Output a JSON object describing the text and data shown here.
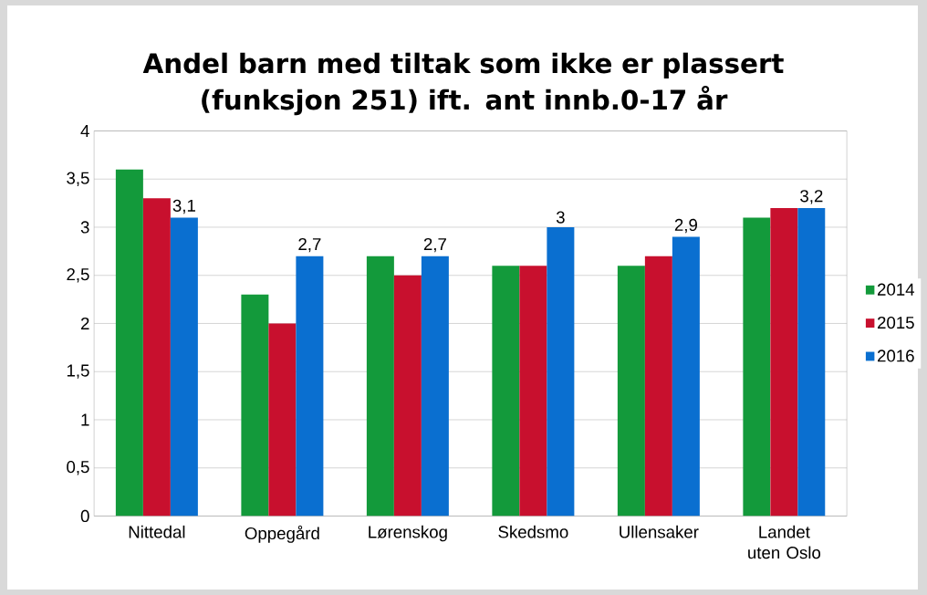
{
  "chart_data": {
    "type": "bar",
    "title": "Andel barn med tiltak som ikke er plassert (funksjon 251) ift. ant innb.0-17 år",
    "categories": [
      "Nittedal",
      "Oppegård",
      "Lørenskog",
      "Skedsmo",
      "Ullensaker",
      "Landet uten Oslo"
    ],
    "series": [
      {
        "name": "2014",
        "color": "#139a3b",
        "values": [
          3.6,
          2.3,
          2.7,
          2.6,
          2.6,
          3.1
        ]
      },
      {
        "name": "2015",
        "color": "#c8102e",
        "values": [
          3.3,
          2.0,
          2.5,
          2.6,
          2.7,
          3.2
        ]
      },
      {
        "name": "2016",
        "color": "#0a6fd0",
        "values": [
          3.1,
          2.7,
          2.7,
          3.0,
          2.9,
          3.2
        ],
        "value_labels": [
          "3,1",
          "2,7",
          "2,7",
          "3",
          "2,9",
          "3,2"
        ]
      }
    ],
    "ylim": [
      0,
      4
    ],
    "yticks": [
      0,
      {
        "value": 0.5,
        "label": "0,5"
      },
      1,
      {
        "value": 1.5,
        "label": "1,5"
      },
      2,
      {
        "value": 2.5,
        "label": "2,5"
      },
      3,
      {
        "value": 3.5,
        "label": "3,5"
      },
      4
    ],
    "grid": "y",
    "legend": "right"
  }
}
